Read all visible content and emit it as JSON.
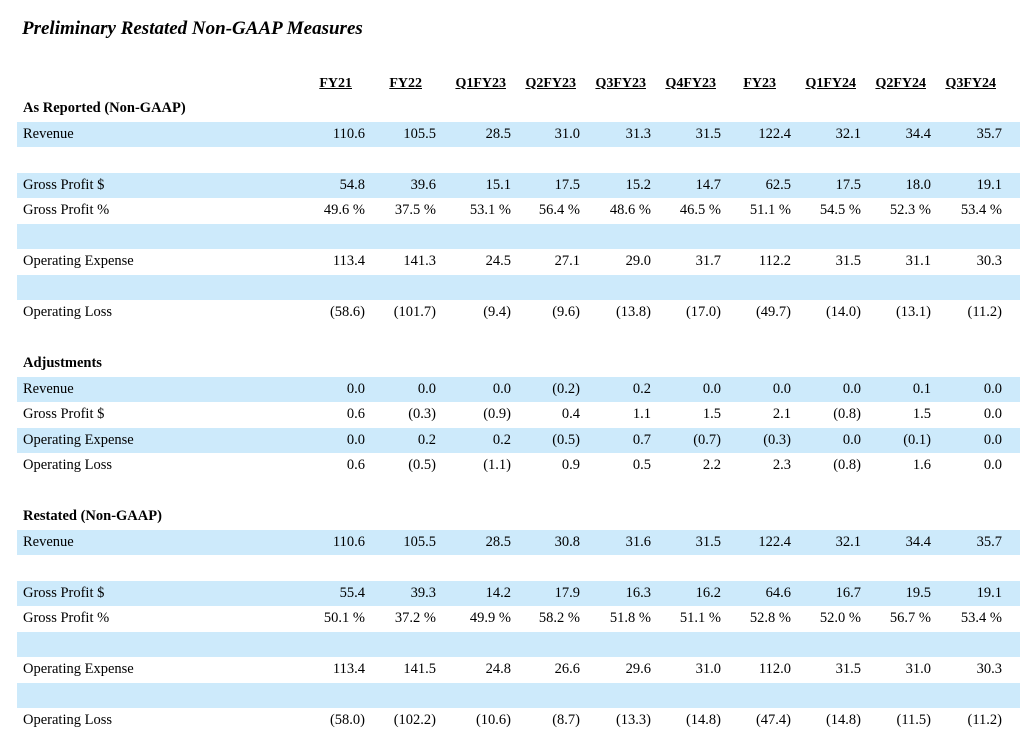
{
  "title": "Preliminary Restated Non-GAAP Measures",
  "columns": [
    "FY21",
    "FY22",
    "Q1FY23",
    "Q2FY23",
    "Q3FY23",
    "Q4FY23",
    "FY23",
    "Q1FY24",
    "Q2FY24",
    "Q3FY24"
  ],
  "rows": [
    {
      "type": "section",
      "label": "As Reported (Non-GAAP)"
    },
    {
      "type": "data",
      "shaded": true,
      "label": "Revenue",
      "values": [
        "110.6",
        "105.5",
        "28.5",
        "31.0",
        "31.3",
        "31.5",
        "122.4",
        "32.1",
        "34.4",
        "35.7"
      ]
    },
    {
      "type": "blank",
      "shaded": false
    },
    {
      "type": "data",
      "shaded": true,
      "label": "Gross Profit $",
      "values": [
        "54.8",
        "39.6",
        "15.1",
        "17.5",
        "15.2",
        "14.7",
        "62.5",
        "17.5",
        "18.0",
        "19.1"
      ]
    },
    {
      "type": "data",
      "shaded": false,
      "label": "Gross Profit %",
      "values": [
        "49.6 %",
        "37.5 %",
        "53.1 %",
        "56.4 %",
        "48.6 %",
        "46.5 %",
        "51.1 %",
        "54.5 %",
        "52.3 %",
        "53.4 %"
      ]
    },
    {
      "type": "blank",
      "shaded": true
    },
    {
      "type": "data",
      "shaded": false,
      "label": "Operating Expense",
      "values": [
        "113.4",
        "141.3",
        "24.5",
        "27.1",
        "29.0",
        "31.7",
        "112.2",
        "31.5",
        "31.1",
        "30.3"
      ]
    },
    {
      "type": "blank",
      "shaded": true
    },
    {
      "type": "data",
      "shaded": false,
      "label": "Operating Loss",
      "values": [
        "(58.6)",
        "(101.7)",
        "(9.4)",
        "(9.6)",
        "(13.8)",
        "(17.0)",
        "(49.7)",
        "(14.0)",
        "(13.1)",
        "(11.2)"
      ]
    },
    {
      "type": "blank",
      "shaded": false
    },
    {
      "type": "section",
      "label": "Adjustments"
    },
    {
      "type": "data",
      "shaded": true,
      "label": "Revenue",
      "values": [
        "0.0",
        "0.0",
        "0.0",
        "(0.2)",
        "0.2",
        "0.0",
        "0.0",
        "0.0",
        "0.1",
        "0.0"
      ]
    },
    {
      "type": "data",
      "shaded": false,
      "label": "Gross Profit $",
      "values": [
        "0.6",
        "(0.3)",
        "(0.9)",
        "0.4",
        "1.1",
        "1.5",
        "2.1",
        "(0.8)",
        "1.5",
        "0.0"
      ]
    },
    {
      "type": "data",
      "shaded": true,
      "label": "Operating Expense",
      "values": [
        "0.0",
        "0.2",
        "0.2",
        "(0.5)",
        "0.7",
        "(0.7)",
        "(0.3)",
        "0.0",
        "(0.1)",
        "0.0"
      ]
    },
    {
      "type": "data",
      "shaded": false,
      "label": "Operating Loss",
      "values": [
        "0.6",
        "(0.5)",
        "(1.1)",
        "0.9",
        "0.5",
        "2.2",
        "2.3",
        "(0.8)",
        "1.6",
        "0.0"
      ]
    },
    {
      "type": "blank",
      "shaded": false
    },
    {
      "type": "section",
      "label": "Restated (Non-GAAP)"
    },
    {
      "type": "data",
      "shaded": true,
      "label": "Revenue",
      "values": [
        "110.6",
        "105.5",
        "28.5",
        "30.8",
        "31.6",
        "31.5",
        "122.4",
        "32.1",
        "34.4",
        "35.7"
      ]
    },
    {
      "type": "blank",
      "shaded": false
    },
    {
      "type": "data",
      "shaded": true,
      "label": "Gross Profit $",
      "values": [
        "55.4",
        "39.3",
        "14.2",
        "17.9",
        "16.3",
        "16.2",
        "64.6",
        "16.7",
        "19.5",
        "19.1"
      ]
    },
    {
      "type": "data",
      "shaded": false,
      "label": "Gross Profit %",
      "values": [
        "50.1 %",
        "37.2 %",
        "49.9 %",
        "58.2 %",
        "51.8 %",
        "51.1 %",
        "52.8 %",
        "52.0 %",
        "56.7 %",
        "53.4 %"
      ]
    },
    {
      "type": "blank",
      "shaded": true
    },
    {
      "type": "data",
      "shaded": false,
      "label": "Operating Expense",
      "values": [
        "113.4",
        "141.5",
        "24.8",
        "26.6",
        "29.6",
        "31.0",
        "112.0",
        "31.5",
        "31.0",
        "30.3"
      ]
    },
    {
      "type": "blank",
      "shaded": true
    },
    {
      "type": "data",
      "shaded": false,
      "label": "Operating Loss",
      "values": [
        "(58.0)",
        "(102.2)",
        "(10.6)",
        "(8.7)",
        "(13.3)",
        "(14.8)",
        "(47.4)",
        "(14.8)",
        "(11.5)",
        "(11.2)"
      ]
    }
  ]
}
